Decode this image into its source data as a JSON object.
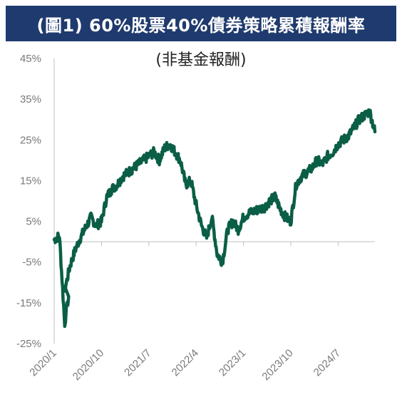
{
  "header": {
    "title": "(圖1) 60%股票40%債券策略累積報酬率"
  },
  "chart_data": {
    "type": "line",
    "title": "(圖1) 60%股票40%債券策略累積報酬率",
    "subtitle": "(非基金報酬)",
    "yticks": [
      "45%",
      "35%",
      "25%",
      "15%",
      "5%",
      "-5%",
      "-15%",
      "-25%"
    ],
    "ytick_values": [
      45,
      35,
      25,
      15,
      5,
      -5,
      -15,
      -25
    ],
    "xticks": [
      "2020/1",
      "2020/10",
      "2021/7",
      "2022/4",
      "2023/1",
      "2023/10",
      "2024/7"
    ],
    "ylim": [
      -25,
      45
    ],
    "xlim": [
      "2020/1",
      "2025/2"
    ],
    "line_color": "#0b5e46",
    "series": [
      {
        "x": [
          "2020/1",
          "2020/2",
          "2020/3",
          "2020/3",
          "2020/4",
          "2020/5",
          "2020/6",
          "2020/7",
          "2020/8",
          "2020/9",
          "2020/10",
          "2020/11",
          "2020/12",
          "2021/1",
          "2021/2",
          "2021/3",
          "2021/4",
          "2021/5",
          "2021/6",
          "2021/7",
          "2021/8",
          "2021/9",
          "2021/10",
          "2021/11",
          "2021/12",
          "2022/1",
          "2022/2",
          "2022/3",
          "2022/4",
          "2022/5",
          "2022/6",
          "2022/7",
          "2022/8",
          "2022/9",
          "2022/10",
          "2022/11",
          "2022/12",
          "2023/1",
          "2023/2",
          "2023/3",
          "2023/4",
          "2023/5",
          "2023/6",
          "2023/7",
          "2023/8",
          "2023/9",
          "2023/10",
          "2023/11",
          "2023/12",
          "2024/1",
          "2024/2",
          "2024/3",
          "2024/4",
          "2024/5",
          "2024/6",
          "2024/7",
          "2024/8",
          "2024/9",
          "2024/10",
          "2024/11",
          "2024/12",
          "2025/1",
          "2025/2"
        ],
        "values": [
          0.5,
          1.5,
          -20,
          -12,
          -6,
          -2,
          1,
          3.5,
          6,
          4,
          5,
          11,
          13,
          14,
          16,
          17,
          18,
          19,
          20,
          21,
          22,
          20,
          23,
          24,
          22,
          20,
          14,
          15,
          9,
          4,
          1,
          6,
          -3,
          -5,
          3,
          5,
          3,
          6,
          7,
          7.5,
          8,
          8.5,
          10,
          11,
          8,
          6,
          5,
          14,
          16,
          17,
          18,
          20,
          19,
          21,
          22,
          24,
          25,
          26,
          28,
          30,
          31,
          32,
          27
        ]
      }
    ]
  }
}
